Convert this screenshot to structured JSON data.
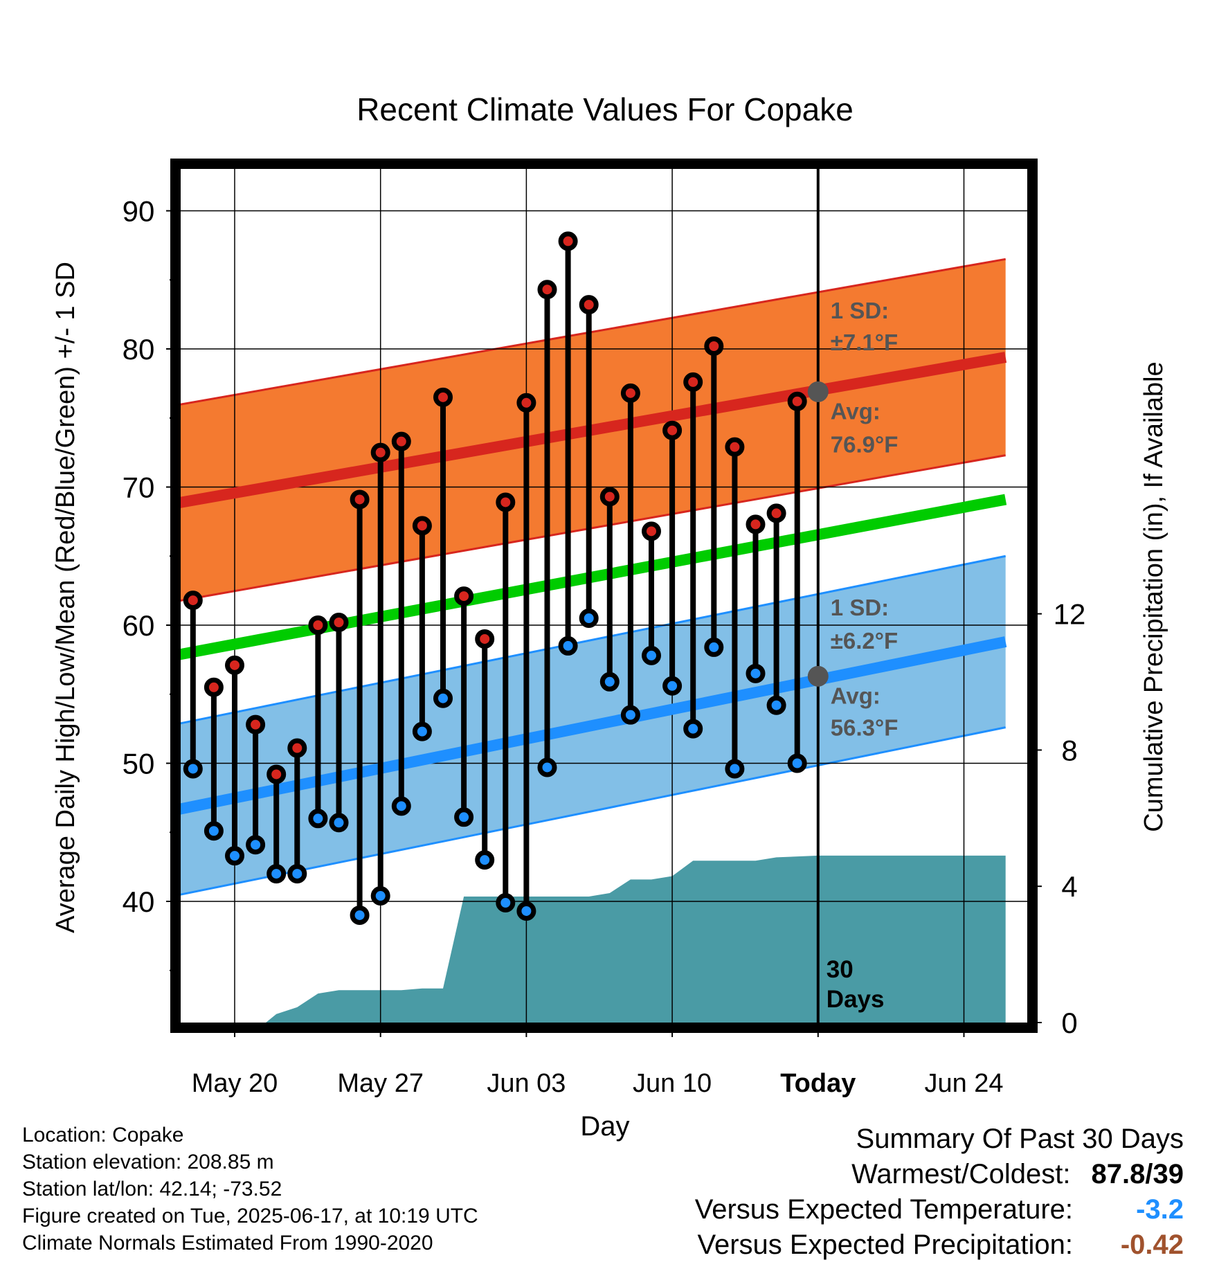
{
  "chart_data": {
    "type": "scatter",
    "title": "Recent Climate Values For Copake",
    "xlabel": "Day",
    "ylabel_left": "Average Daily High/Low/Mean (Red/Blue/Green) +/- 1 SD",
    "ylabel_right": "Cumulative Precipitation (in), If Available",
    "x_ticks": [
      {
        "day": 3,
        "label": "May 20"
      },
      {
        "day": 10,
        "label": "May 27"
      },
      {
        "day": 17,
        "label": "Jun 03"
      },
      {
        "day": 24,
        "label": "Jun 10"
      },
      {
        "day": 31,
        "label": "Today"
      },
      {
        "day": 38,
        "label": "Jun 24"
      }
    ],
    "xlim": [
      0,
      40
    ],
    "ylim": [
      31,
      93
    ],
    "y_ticks": [
      40,
      50,
      60,
      70,
      80,
      90
    ],
    "y2lim": [
      0,
      14.8
    ],
    "y2_ticks": [
      0,
      4,
      8,
      12
    ],
    "today_day": 31,
    "highs": [
      61.8,
      55.5,
      57.1,
      52.8,
      49.2,
      51.1,
      60.0,
      60.2,
      69.1,
      72.5,
      73.3,
      67.2,
      76.5,
      62.1,
      59.0,
      68.9,
      76.1,
      84.3,
      87.8,
      83.2,
      69.3,
      76.8,
      66.8,
      74.1,
      77.6,
      80.2,
      72.9,
      67.3,
      68.1,
      76.2
    ],
    "lows": [
      49.6,
      45.1,
      43.3,
      44.1,
      42.0,
      42.0,
      46.0,
      45.7,
      39.0,
      40.4,
      46.9,
      52.3,
      54.7,
      46.1,
      43.0,
      39.9,
      39.3,
      49.7,
      58.5,
      60.5,
      55.9,
      53.5,
      57.8,
      55.6,
      52.5,
      58.4,
      49.6,
      56.5,
      54.2,
      50.0
    ],
    "normal_high": {
      "start": 68.8,
      "end": 79.4
    },
    "normal_low": {
      "start": 46.6,
      "end": 58.8
    },
    "normal_mean": {
      "start": 57.8,
      "end": 69.1
    },
    "high_sd": 7.1,
    "low_sd": 6.2,
    "precip_cumulative": [
      {
        "day": 0,
        "value": 0
      },
      {
        "day": 4.5,
        "value": 0
      },
      {
        "day": 5,
        "value": 0.25
      },
      {
        "day": 6,
        "value": 0.45
      },
      {
        "day": 7,
        "value": 0.85
      },
      {
        "day": 8,
        "value": 0.95
      },
      {
        "day": 11,
        "value": 0.95
      },
      {
        "day": 12,
        "value": 1.0
      },
      {
        "day": 13,
        "value": 1.0
      },
      {
        "day": 14,
        "value": 3.7
      },
      {
        "day": 20,
        "value": 3.7
      },
      {
        "day": 21,
        "value": 3.8
      },
      {
        "day": 22,
        "value": 4.2
      },
      {
        "day": 23,
        "value": 4.2
      },
      {
        "day": 24,
        "value": 4.3
      },
      {
        "day": 25,
        "value": 4.75
      },
      {
        "day": 28,
        "value": 4.75
      },
      {
        "day": 29,
        "value": 4.85
      },
      {
        "day": 31,
        "value": 4.9
      },
      {
        "day": 40,
        "value": 4.9
      }
    ],
    "avg_high_marker": 76.9,
    "avg_low_marker": 56.3,
    "annotations": {
      "high_sd_label_1": "1 SD:",
      "high_sd_label_2": "±7.1°F",
      "high_avg_label_1": "Avg:",
      "high_avg_label_2": "76.9°F",
      "low_sd_label_1": "1 SD:",
      "low_sd_label_2": "±6.2°F",
      "low_avg_label_1": "Avg:",
      "low_avg_label_2": "56.3°F",
      "days_label_1": "30",
      "days_label_2": "Days"
    },
    "grid": true,
    "colors": {
      "high_band": "#F47A30",
      "high_line": "#D7261E",
      "low_band": "#82BFE7",
      "low_line": "#1E8FFF",
      "mean_line": "#00CC00",
      "precip": "#4A9BA5",
      "high_dot": "#D7261E",
      "low_dot": "#1E8FFF",
      "avg_marker": "#555555",
      "annotation_text": "#555555"
    }
  },
  "footer": {
    "location": "Location: Copake",
    "elevation": "Station elevation: 208.85 m",
    "latlon": "Station lat/lon: 42.14; -73.52",
    "created": "Figure created on Tue, 2025-06-17, at 10:19 UTC",
    "normals": "Climate Normals Estimated From 1990-2020"
  },
  "summary": {
    "title": "Summary Of Past 30 Days",
    "warmest_coldest_label": "Warmest/Coldest:",
    "warmest_coldest_value": "87.8/39",
    "temp_label": "Versus Expected Temperature:",
    "temp_value": "-3.2",
    "temp_color": "#1E8FFF",
    "precip_label": "Versus Expected Precipitation:",
    "precip_value": "-0.42",
    "precip_color": "#A0522D"
  }
}
